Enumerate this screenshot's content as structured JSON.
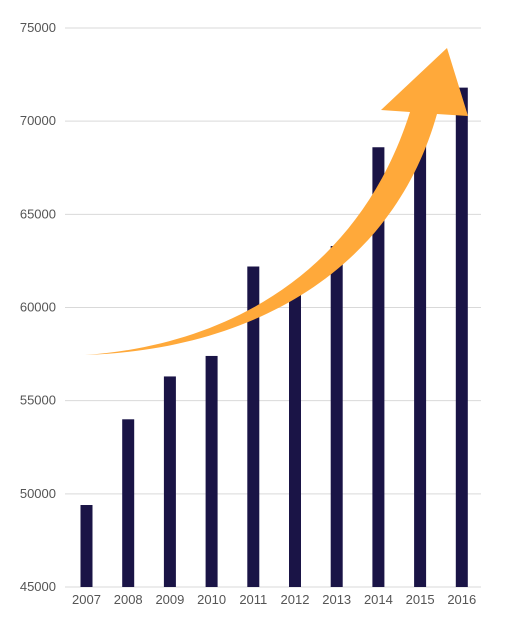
{
  "chart_data": {
    "type": "bar",
    "categories": [
      "2007",
      "2008",
      "2009",
      "2010",
      "2011",
      "2012",
      "2013",
      "2014",
      "2015",
      "2016"
    ],
    "values": [
      49400,
      54000,
      56300,
      57400,
      62200,
      60900,
      63300,
      68600,
      69300,
      71800
    ],
    "ylim": [
      45000,
      75000
    ],
    "yticks": [
      "45000",
      "50000",
      "55000",
      "60000",
      "65000",
      "70000",
      "75000"
    ],
    "grid": true,
    "legend": "none",
    "colors": {
      "bar": "#1a1446",
      "arrow": "#ffa93a",
      "grid": "#d9d9d9",
      "text": "#555555"
    },
    "annotation": {
      "shape": "upward-trend-arrow"
    }
  }
}
